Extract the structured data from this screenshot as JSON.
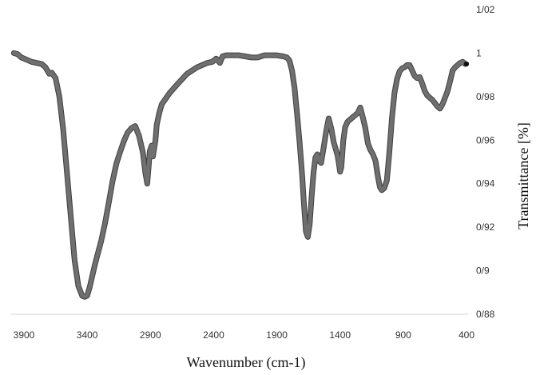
{
  "chart_data": {
    "type": "line",
    "title": "",
    "xlabel": "Wavenumber (cm-1)",
    "ylabel": "Transmittance [%]",
    "xlim": [
      3980,
      400
    ],
    "ylim": [
      0.88,
      1.02
    ],
    "x_reversed": true,
    "grid": false,
    "legend": "none",
    "x_tick_labels": [
      "3900",
      "3400",
      "2900",
      "2400",
      "1900",
      "1400",
      "900",
      "400"
    ],
    "y_tick_labels": [
      "0/88",
      "0/9",
      "0/92",
      "0/94",
      "0/96",
      "0/98",
      "1",
      "1/02"
    ],
    "series": [
      {
        "color": "#6f6f6f",
        "x": [
          3980,
          3950,
          3920,
          3880,
          3840,
          3800,
          3760,
          3730,
          3700,
          3680,
          3650,
          3620,
          3590,
          3560,
          3530,
          3500,
          3470,
          3440,
          3420,
          3400,
          3380,
          3360,
          3340,
          3320,
          3290,
          3260,
          3230,
          3200,
          3170,
          3140,
          3110,
          3080,
          3050,
          3020,
          2990,
          2960,
          2940,
          2925,
          2915,
          2905,
          2890,
          2880,
          2860,
          2850,
          2830,
          2810,
          2780,
          2750,
          2720,
          2690,
          2650,
          2610,
          2570,
          2530,
          2490,
          2450,
          2410,
          2380,
          2350,
          2330,
          2300,
          2250,
          2200,
          2150,
          2100,
          2050,
          2000,
          1950,
          1900,
          1850,
          1820,
          1800,
          1780,
          1760,
          1740,
          1720,
          1700,
          1685,
          1670,
          1655,
          1640,
          1625,
          1610,
          1595,
          1580,
          1565,
          1550,
          1530,
          1510,
          1490,
          1470,
          1450,
          1430,
          1420,
          1410,
          1400,
          1390,
          1375,
          1360,
          1340,
          1320,
          1300,
          1280,
          1260,
          1240,
          1220,
          1200,
          1180,
          1160,
          1140,
          1120,
          1100,
          1085,
          1070,
          1050,
          1030,
          1010,
          990,
          970,
          950,
          930,
          910,
          890,
          870,
          850,
          830,
          810,
          790,
          770,
          750,
          730,
          710,
          690,
          670,
          650,
          630,
          610,
          590,
          570,
          550,
          530,
          510,
          490,
          470,
          450,
          430,
          410
        ],
        "y": [
          1.0,
          0.9995,
          0.998,
          0.997,
          0.996,
          0.9955,
          0.995,
          0.9935,
          0.9905,
          0.991,
          0.9885,
          0.98,
          0.965,
          0.945,
          0.925,
          0.905,
          0.893,
          0.8885,
          0.888,
          0.8885,
          0.8925,
          0.8975,
          0.9025,
          0.907,
          0.9135,
          0.9215,
          0.931,
          0.941,
          0.949,
          0.9545,
          0.9595,
          0.9635,
          0.9655,
          0.9665,
          0.962,
          0.9545,
          0.945,
          0.94,
          0.947,
          0.955,
          0.9575,
          0.9525,
          0.96,
          0.967,
          0.9725,
          0.9765,
          0.979,
          0.9815,
          0.9835,
          0.9855,
          0.988,
          0.9905,
          0.992,
          0.9935,
          0.9945,
          0.9955,
          0.996,
          0.9975,
          0.9955,
          0.9985,
          0.999,
          0.999,
          0.999,
          0.9985,
          0.998,
          0.998,
          0.999,
          0.999,
          0.999,
          0.9985,
          0.998,
          0.9965,
          0.992,
          0.984,
          0.972,
          0.959,
          0.944,
          0.93,
          0.918,
          0.9155,
          0.9215,
          0.934,
          0.945,
          0.952,
          0.9535,
          0.9505,
          0.9495,
          0.9565,
          0.964,
          0.97,
          0.9655,
          0.959,
          0.955,
          0.953,
          0.9495,
          0.9455,
          0.9475,
          0.9595,
          0.966,
          0.9685,
          0.9695,
          0.9705,
          0.9715,
          0.9725,
          0.975,
          0.9705,
          0.9655,
          0.9585,
          0.9555,
          0.9535,
          0.9505,
          0.943,
          0.9385,
          0.937,
          0.938,
          0.9415,
          0.9545,
          0.97,
          0.9815,
          0.988,
          0.9915,
          0.993,
          0.9935,
          0.9945,
          0.9945,
          0.992,
          0.9895,
          0.9885,
          0.989,
          0.986,
          0.9825,
          0.9805,
          0.9795,
          0.9785,
          0.977,
          0.9755,
          0.9745,
          0.9765,
          0.9795,
          0.9825,
          0.987,
          0.992,
          0.9935,
          0.9945,
          0.9955,
          0.996,
          0.995
        ]
      }
    ]
  }
}
